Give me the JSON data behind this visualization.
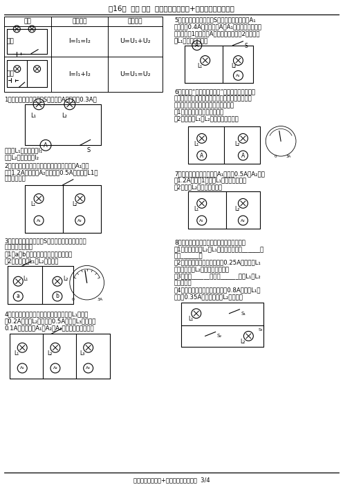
{
  "title": "第16章  电压 电阳  串、并联电路电流+电压的规律计算专题",
  "footer": "串、并联电路电流+电压的规律计算专题  3/4",
  "background": "#ffffff",
  "table_headers": [
    "电路",
    "电流规律",
    "电压规律"
  ],
  "row1_type": "串联",
  "row1_current": "I=I₁=I₂",
  "row1_voltage": "U=U₁+U₂",
  "row2_type": "并联",
  "row2_current": "I=I₁+I₂",
  "row2_voltage": "U=U₁=U₂"
}
